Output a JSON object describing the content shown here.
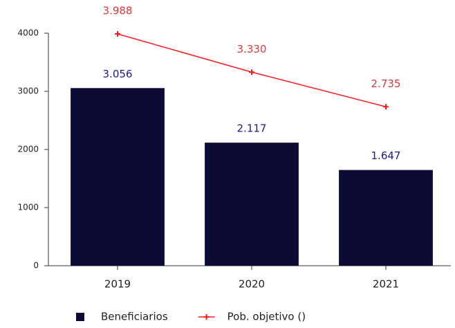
{
  "chart_data": {
    "type": "bar-line",
    "categories": [
      "2019",
      "2020",
      "2021"
    ],
    "series": [
      {
        "name": "Beneficiarios",
        "type": "bar",
        "color": "#0b0b35",
        "label_color": "#1a1a8c",
        "values": [
          3056,
          2117,
          1647
        ],
        "value_labels": [
          "3.056",
          "2.117",
          "1.647"
        ]
      },
      {
        "name": "Pob. objetivo ()",
        "type": "line",
        "color": "#ff1a1a",
        "label_color": "#d9383a",
        "values": [
          3988,
          3330,
          2735
        ],
        "value_labels": [
          "3.988",
          "3.330",
          "2.735"
        ]
      }
    ],
    "ylim": [
      0,
      4000
    ],
    "yticks": [
      0,
      1000,
      2000,
      3000,
      4000
    ],
    "grid": false,
    "legend": "bottom"
  }
}
